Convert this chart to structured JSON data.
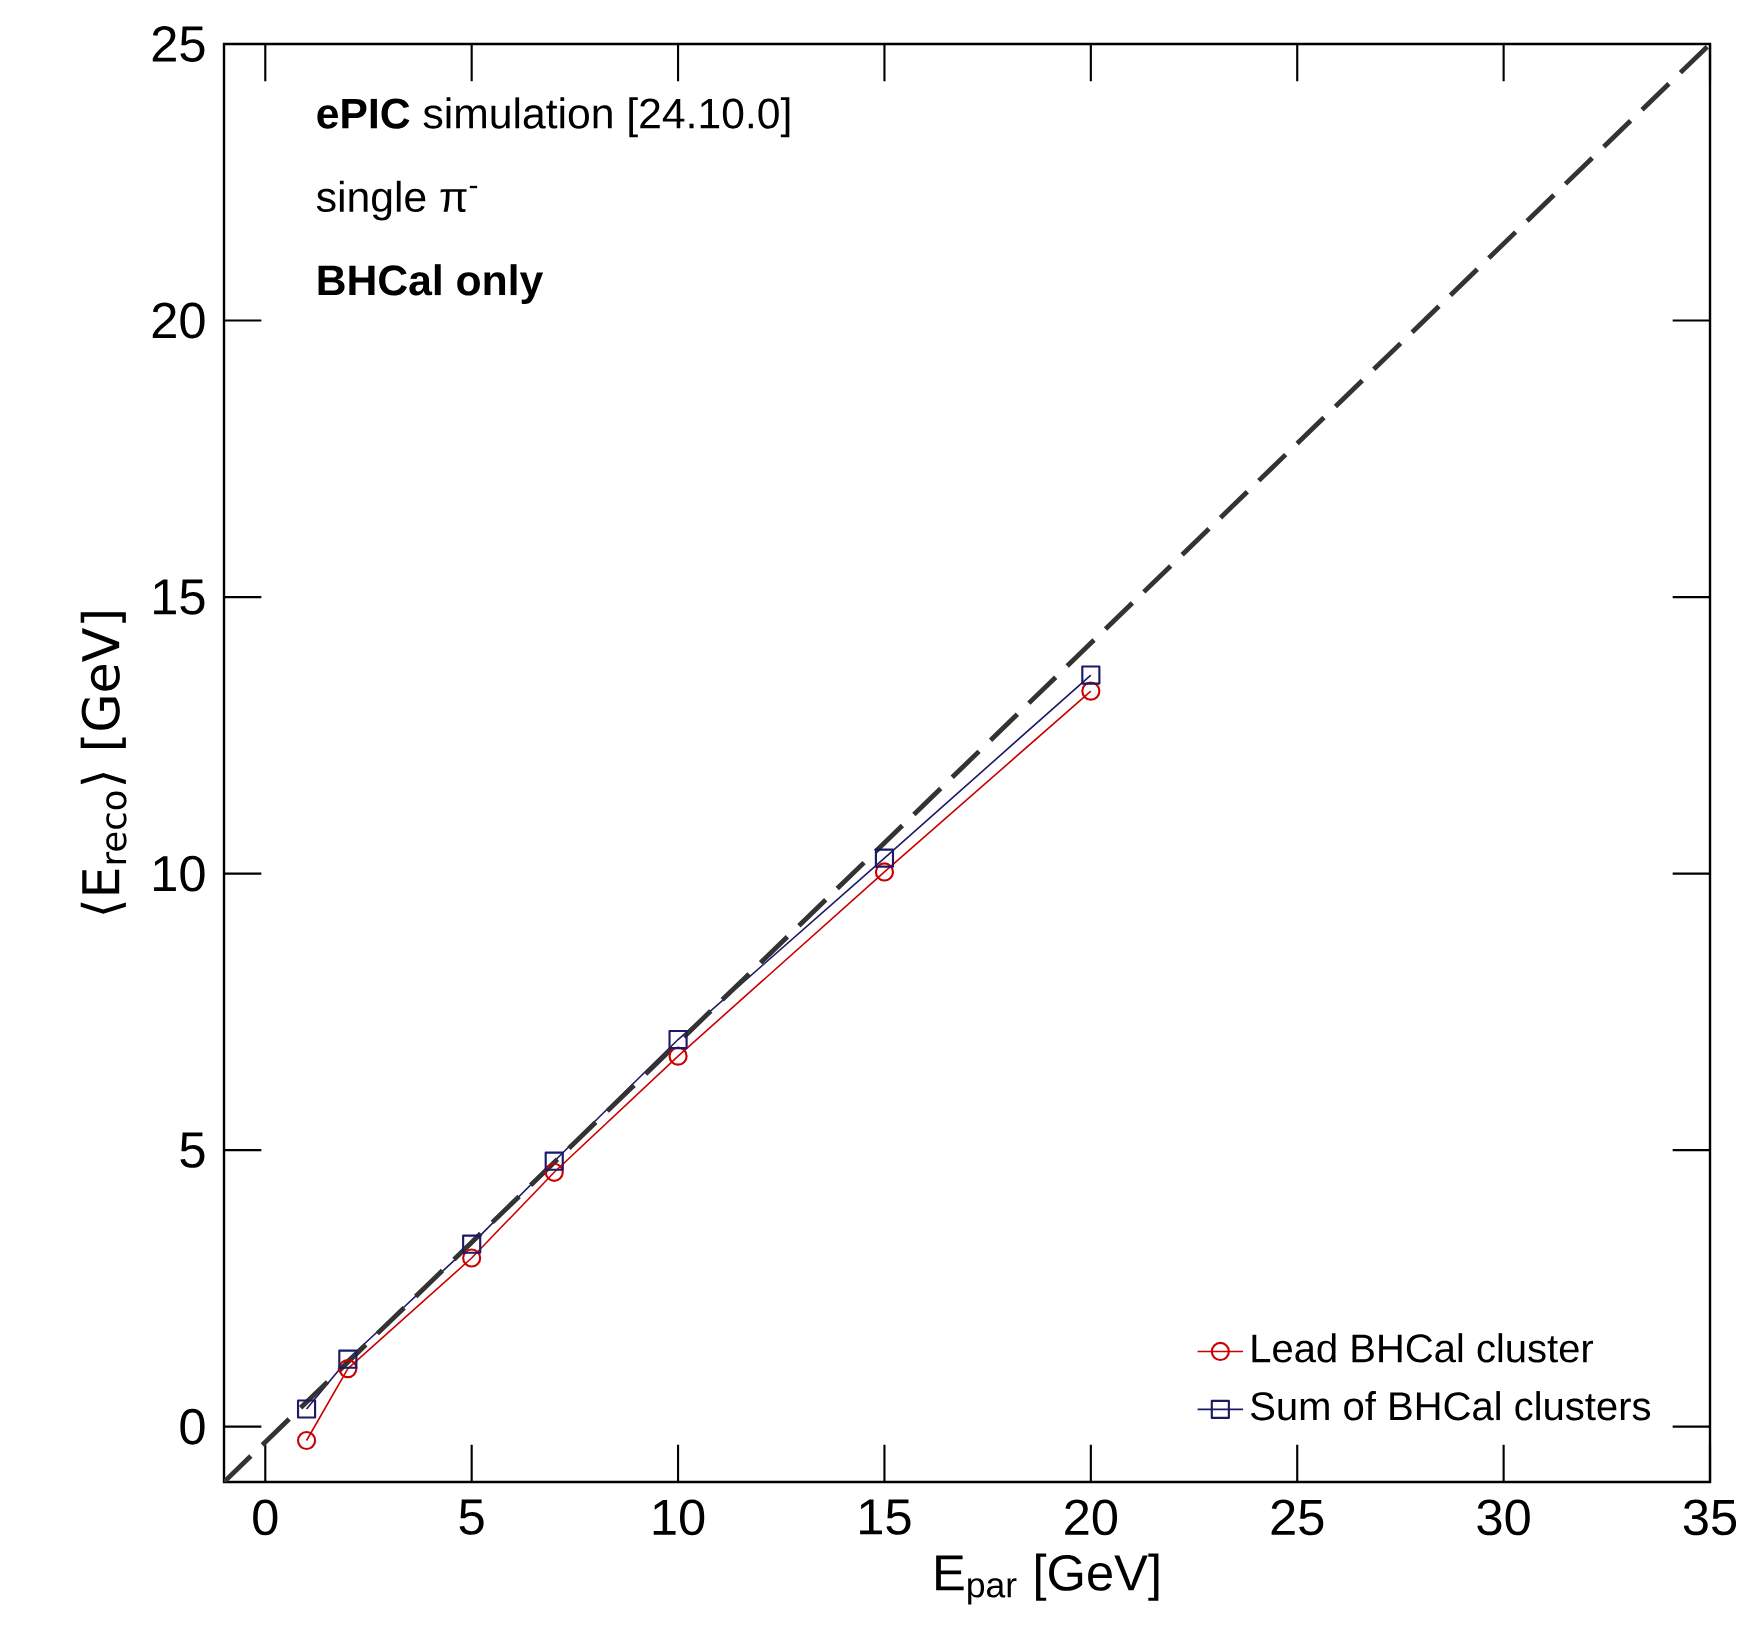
{
  "chart_data": {
    "type": "line",
    "xlabel": "E$_{par}$ [GeV]",
    "ylabel": "⟨E$_{reco}$⟩ [GeV]",
    "annotations": [
      "**ePIC** simulation [24.10.0]",
      "single   π$^{-}$",
      "**BHCal only**"
    ],
    "x": [
      1,
      2,
      5,
      7,
      10,
      15,
      20
    ],
    "series": [
      {
        "name": "Lead BHCal cluster",
        "color": "#cc0000",
        "marker": "circle",
        "values": [
          -0.25,
          1.05,
          3.05,
          4.6,
          6.7,
          10.03,
          13.3
        ]
      },
      {
        "name": "Sum of BHCal clusters",
        "color": "#1a1a66",
        "marker": "square",
        "values": [
          0.32,
          1.22,
          3.3,
          4.8,
          7.0,
          10.28,
          13.59
        ]
      },
      {
        "color": "#333333",
        "marker": "none",
        "line_style": "dashed",
        "x": [
          -1,
          35
        ],
        "values": [
          -1,
          25
        ]
      }
    ],
    "xlim": [
      -1,
      35
    ],
    "ylim": [
      -1,
      25
    ],
    "xticks": [
      0,
      5,
      10,
      15,
      20,
      25,
      30,
      35
    ],
    "yticks": [
      0,
      5,
      10,
      15,
      20,
      25
    ],
    "grid": false,
    "legend": "bottom right"
  }
}
